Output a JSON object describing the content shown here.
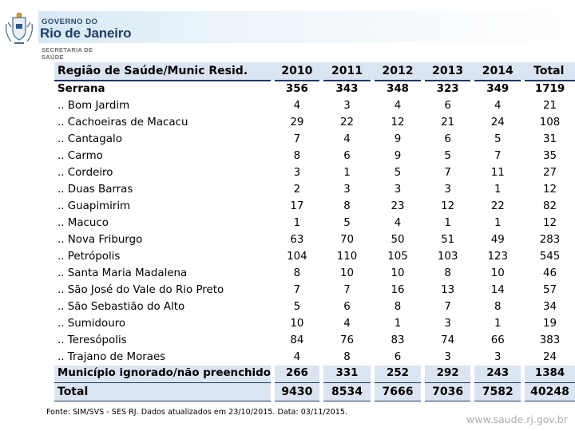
{
  "header": {
    "gov_small": "GOVERNO DO",
    "gov_big": "Rio de Janeiro",
    "secretaria_line1": "SECRETARIA DE",
    "secretaria_line2": "SAÚDE"
  },
  "table": {
    "columns": [
      "Região de Saúde/Munic Resid.",
      "2010",
      "2011",
      "2012",
      "2013",
      "2014",
      "Total"
    ],
    "rows": [
      {
        "name": "Serrana",
        "values": [
          "356",
          "343",
          "348",
          "323",
          "349",
          "1719"
        ],
        "bold": true
      },
      {
        "name": ".. Bom Jardim",
        "values": [
          "4",
          "3",
          "4",
          "6",
          "4",
          "21"
        ]
      },
      {
        "name": ".. Cachoeiras de Macacu",
        "values": [
          "29",
          "22",
          "12",
          "21",
          "24",
          "108"
        ]
      },
      {
        "name": ".. Cantagalo",
        "values": [
          "7",
          "4",
          "9",
          "6",
          "5",
          "31"
        ]
      },
      {
        "name": ".. Carmo",
        "values": [
          "8",
          "6",
          "9",
          "5",
          "7",
          "35"
        ]
      },
      {
        "name": ".. Cordeiro",
        "values": [
          "3",
          "1",
          "5",
          "7",
          "11",
          "27"
        ]
      },
      {
        "name": ".. Duas Barras",
        "values": [
          "2",
          "3",
          "3",
          "3",
          "1",
          "12"
        ]
      },
      {
        "name": ".. Guapimirim",
        "values": [
          "17",
          "8",
          "23",
          "12",
          "22",
          "82"
        ]
      },
      {
        "name": ".. Macuco",
        "values": [
          "1",
          "5",
          "4",
          "1",
          "1",
          "12"
        ]
      },
      {
        "name": ".. Nova Friburgo",
        "values": [
          "63",
          "70",
          "50",
          "51",
          "49",
          "283"
        ]
      },
      {
        "name": ".. Petrópolis",
        "values": [
          "104",
          "110",
          "105",
          "103",
          "123",
          "545"
        ]
      },
      {
        "name": ".. Santa Maria Madalena",
        "values": [
          "8",
          "10",
          "10",
          "8",
          "10",
          "46"
        ]
      },
      {
        "name": ".. São José do Vale do Rio Preto",
        "values": [
          "7",
          "7",
          "16",
          "13",
          "14",
          "57"
        ]
      },
      {
        "name": ".. São Sebastião do Alto",
        "values": [
          "5",
          "6",
          "8",
          "7",
          "8",
          "34"
        ]
      },
      {
        "name": ".. Sumidouro",
        "values": [
          "10",
          "4",
          "1",
          "3",
          "1",
          "19"
        ]
      },
      {
        "name": ".. Teresópolis",
        "values": [
          "84",
          "76",
          "83",
          "74",
          "66",
          "383"
        ]
      },
      {
        "name": ".. Trajano de Moraes",
        "values": [
          "4",
          "8",
          "6",
          "3",
          "3",
          "24"
        ]
      }
    ],
    "ignorado": {
      "name": "Município ignorado/não preenchido",
      "values": [
        "266",
        "331",
        "252",
        "292",
        "243",
        "1384"
      ]
    },
    "total": {
      "name": "Total",
      "values": [
        "9430",
        "8534",
        "7666",
        "7036",
        "7582",
        "40248"
      ]
    }
  },
  "footnote": "Fonte: SIM/SVS - SES RJ. Dados atualizados em 23/10/2015. Data: 03/11/2015.",
  "site": "www.saude.rj.gov.br",
  "colors": {
    "header_fill": "#dbe5f1",
    "rule": "#1f3864",
    "brand": "#1f3f66"
  }
}
